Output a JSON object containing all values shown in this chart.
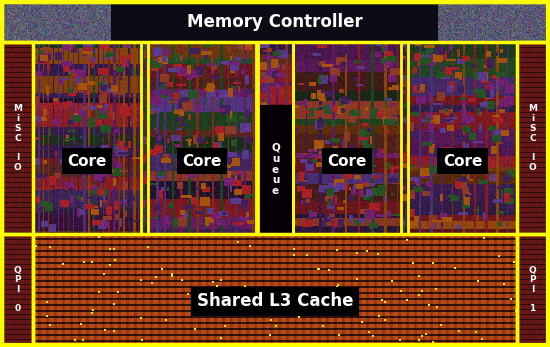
{
  "fig_width": 5.5,
  "fig_height": 3.47,
  "dpi": 100,
  "yellow": "#ffff00",
  "white": "#ffffff",
  "black": "#000000",
  "memory_controller_label": "Memory Controller",
  "core_labels": [
    "Core",
    "Core",
    "Core",
    "Core"
  ],
  "queue_label": "Q\nu\ne\nu\ne",
  "cache_label": "Shared L3 Cache",
  "misc_left_label": "M\ni\nS\nC\n \nI\nO",
  "misc_right_label": "M\ni\nS\nC\n \nI\nO",
  "qpi0_label": "Q\nP\nI\n \n0",
  "qpi1_label": "Q\nP\nI\n \n1",
  "seed": 42
}
